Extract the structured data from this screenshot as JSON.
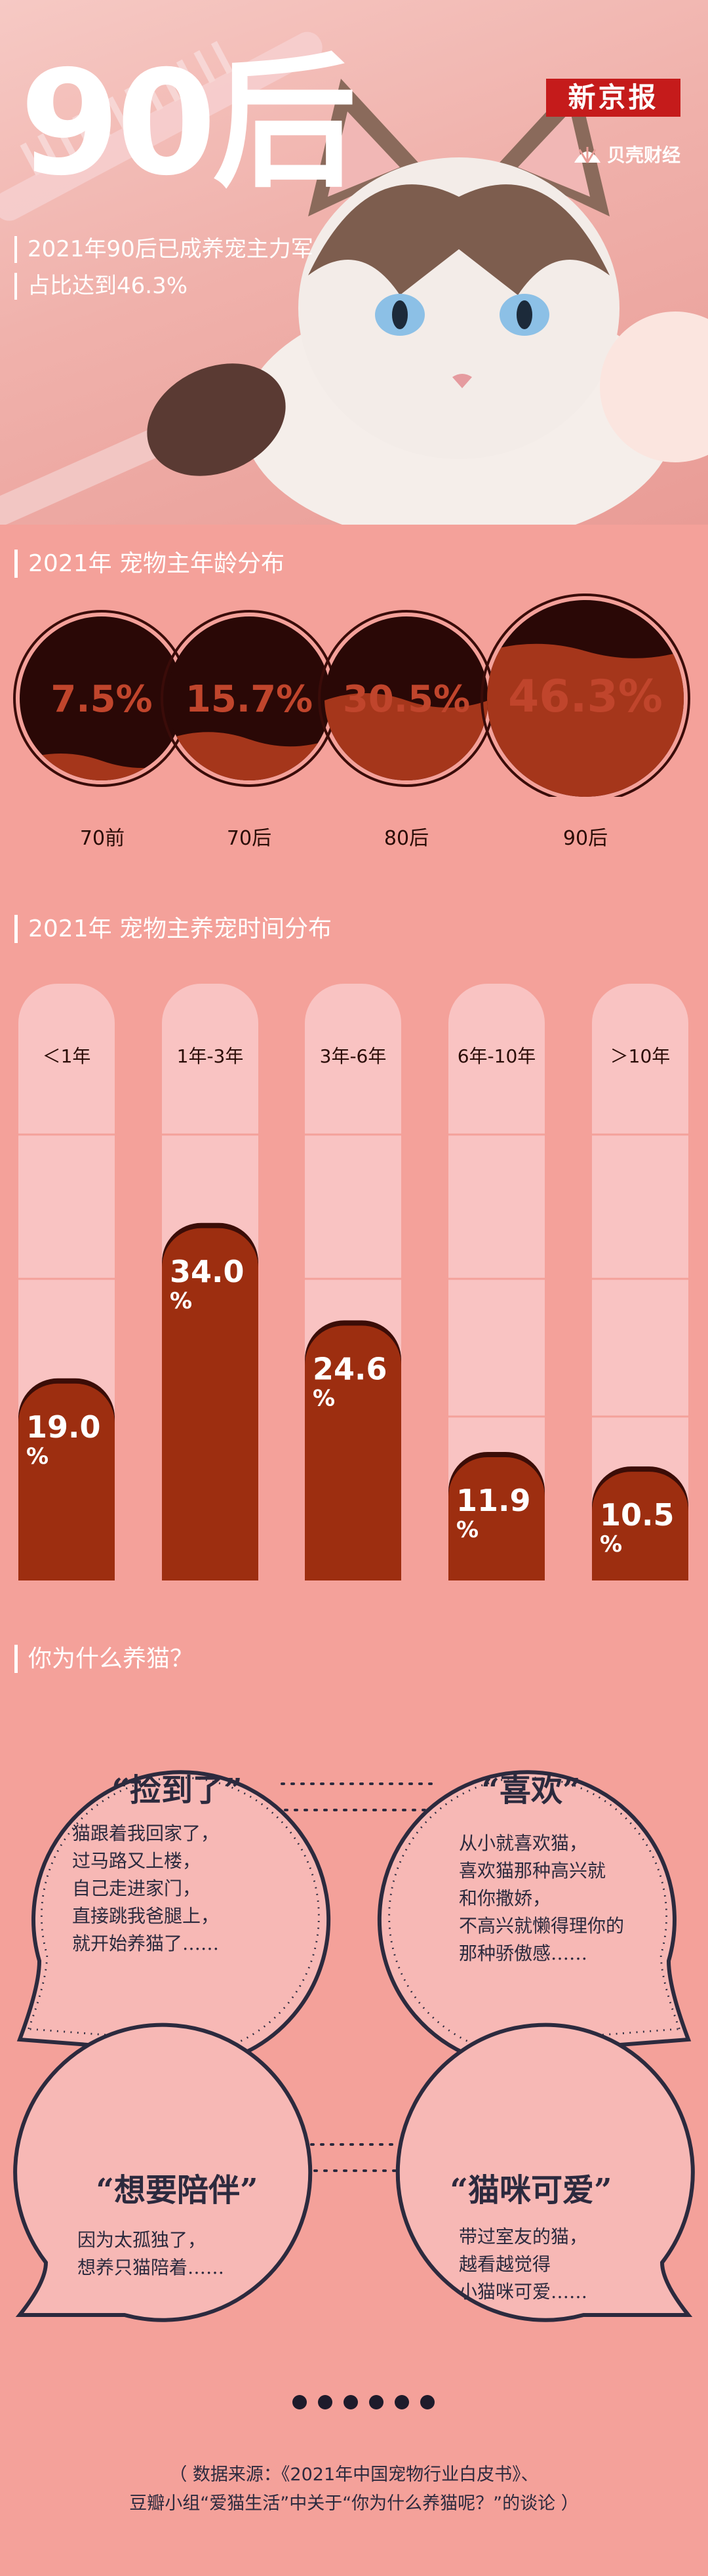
{
  "hero": {
    "big_title": "90后",
    "brand": "新京报",
    "partner": "贝壳财经",
    "subtitle_lines": [
      "2021年90后已成养宠主力军",
      "占比达到46.3%"
    ]
  },
  "colors": {
    "background": "#f4a19a",
    "ring_dark": "#2a0806",
    "ring_fill": "#a5361b",
    "bar_track": "#f9c3c2",
    "bar_fill": "#9d2e10",
    "bubble_bg": "#f7b8b5",
    "bubble_border": "#2c2a3e"
  },
  "sections": {
    "age": "2021年 宠物主年龄分布",
    "duration": "2021年 宠物主养宠时间分布",
    "reasons": "你为什么养猫？"
  },
  "chart_data": [
    {
      "type": "bar",
      "title": "2021年 宠物主年龄分布",
      "categories": [
        "70前",
        "70后",
        "80后",
        "90后"
      ],
      "values": [
        7.5,
        15.7,
        30.5,
        46.3
      ],
      "value_labels": [
        "7.5%",
        "15.7%",
        "30.5%",
        "46.3%"
      ],
      "unit": "%"
    },
    {
      "type": "bar",
      "title": "2021年 宠物主养宠时间分布",
      "categories": [
        "＜1年",
        "1年-3年",
        "3年-6年",
        "6年-10年",
        "＞10年"
      ],
      "values": [
        19.0,
        34.0,
        24.6,
        11.9,
        10.5
      ],
      "value_labels": [
        "19.0",
        "34.0",
        "24.6",
        "11.9",
        "10.5"
      ],
      "unit": "%",
      "ylim": [
        0,
        50
      ]
    }
  ],
  "reasons": [
    {
      "title": "“捡到了”",
      "body": "猫跟着我回家了，\n过马路又上楼，\n自己走进家门，\n直接跳我爸腿上，\n就开始养猫了……"
    },
    {
      "title": "“喜欢”",
      "body": "从小就喜欢猫，\n喜欢猫那种高兴就\n和你撒娇，\n不高兴就懒得理你的\n那种骄傲感……"
    },
    {
      "title": "“想要陪伴”",
      "body": "因为太孤独了，\n想养只猫陪着……"
    },
    {
      "title": "“猫咪可爱”",
      "body": "带过室友的猫，\n越看越觉得\n小猫咪可爱……"
    }
  ],
  "footer": {
    "source": "（ 数据来源：《2021年中国宠物行业白皮书》、\n豆瓣小组“爱猫生活”中关于“你为什么养猫呢？”的谈论 ）"
  }
}
